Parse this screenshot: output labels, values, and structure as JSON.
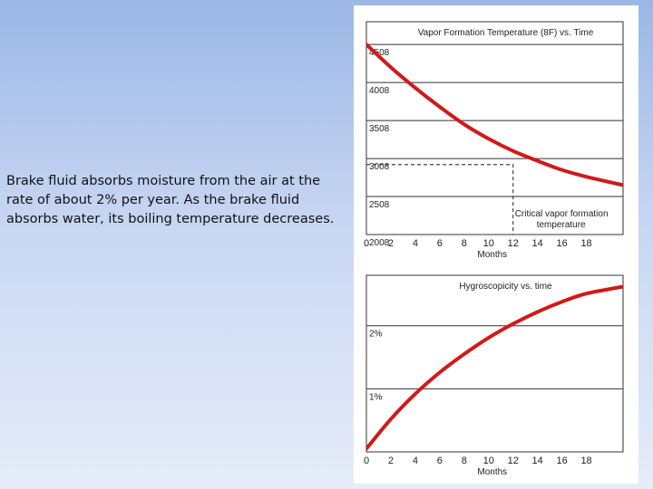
{
  "caption": "Brake fluid absorbs moisture from the air at the rate of about 2% per year.  As the brake fluid absorbs water, its boiling temperature decreases.",
  "colors": {
    "curve": "#d21818",
    "grid": "#333333",
    "dashed": "#444444"
  },
  "chart_data": [
    {
      "type": "line",
      "title": "Vapor Formation Temperature (8F) vs. Time",
      "xlabel": "Months",
      "ylabel": "",
      "x_ticks": [
        0,
        2,
        4,
        6,
        8,
        10,
        12,
        14,
        16,
        18
      ],
      "y_ticks": [
        200,
        250,
        300,
        350,
        400,
        450
      ],
      "y_tick_labels": [
        "2008",
        "2508",
        "3008",
        "3508",
        "4008",
        "4508"
      ],
      "xlim": [
        0,
        21
      ],
      "ylim": [
        200,
        480
      ],
      "grid": true,
      "series": [
        {
          "x": [
            0,
            2,
            4,
            6,
            8,
            10,
            12,
            14,
            16,
            18,
            21
          ],
          "y": [
            450,
            420,
            393,
            368,
            345,
            326,
            310,
            297,
            285,
            276,
            265
          ]
        }
      ],
      "annotation": {
        "label_lines": [
          "Critical vapor formation",
          "temperature"
        ],
        "x": 12,
        "y": 292
      }
    },
    {
      "type": "line",
      "title": "Hygroscopicity vs. time",
      "xlabel": "Months",
      "ylabel": "",
      "x_ticks": [
        0,
        2,
        4,
        6,
        8,
        10,
        12,
        14,
        16,
        18
      ],
      "y_ticks": [
        1,
        2
      ],
      "y_tick_labels": [
        "1%",
        "2%"
      ],
      "xlim": [
        0,
        21
      ],
      "ylim": [
        0,
        2.8
      ],
      "grid": true,
      "series": [
        {
          "x": [
            0,
            2,
            4,
            6,
            8,
            10,
            12,
            14,
            16,
            18,
            21
          ],
          "y": [
            0.05,
            0.52,
            0.92,
            1.26,
            1.55,
            1.81,
            2.03,
            2.22,
            2.38,
            2.51,
            2.62
          ]
        }
      ]
    }
  ]
}
